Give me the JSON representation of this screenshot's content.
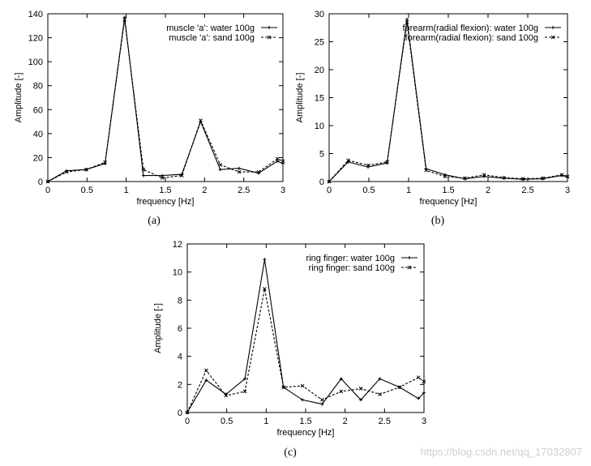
{
  "chart_data": [
    {
      "type": "line",
      "caption": "(a)",
      "xlabel": "frequency [Hz]",
      "ylabel": "Amplitude [-]",
      "xlim": [
        0,
        3
      ],
      "ylim": [
        0,
        140
      ],
      "xticks": [
        0,
        0.5,
        1,
        1.5,
        2,
        2.5,
        3
      ],
      "yticks": [
        0,
        20,
        40,
        60,
        80,
        100,
        120,
        140
      ],
      "legend_position": "top-right",
      "series": [
        {
          "name": "muscle 'a': water 100g",
          "style": "solid",
          "x": [
            0,
            0.24,
            0.49,
            0.73,
            0.98,
            1.22,
            1.46,
            1.71,
            1.95,
            2.2,
            2.44,
            2.69,
            2.93,
            3.0
          ],
          "y": [
            0,
            9,
            10,
            15,
            137,
            5,
            5,
            6,
            50,
            10,
            11,
            7,
            17,
            15
          ]
        },
        {
          "name": "muscle 'a': sand 100g",
          "style": "dashed",
          "x": [
            0,
            0.24,
            0.49,
            0.73,
            0.98,
            1.22,
            1.46,
            1.71,
            1.95,
            2.2,
            2.44,
            2.69,
            2.93,
            3.0
          ],
          "y": [
            0,
            8,
            10,
            16,
            135,
            10,
            3,
            5,
            51,
            14,
            8,
            8,
            19,
            17
          ]
        }
      ]
    },
    {
      "type": "line",
      "caption": "(b)",
      "xlabel": "frequency [Hz]",
      "ylabel": "Amplitude [-]",
      "xlim": [
        0,
        3
      ],
      "ylim": [
        0,
        30
      ],
      "xticks": [
        0,
        0.5,
        1,
        1.5,
        2,
        2.5,
        3
      ],
      "yticks": [
        0,
        5,
        10,
        15,
        20,
        25,
        30
      ],
      "legend_position": "top-right",
      "series": [
        {
          "name": "forearm(radial flexion): water 100g",
          "style": "solid",
          "x": [
            0,
            0.24,
            0.49,
            0.73,
            0.98,
            1.22,
            1.46,
            1.71,
            1.95,
            2.2,
            2.44,
            2.69,
            2.93,
            3.0
          ],
          "y": [
            0,
            3.5,
            2.6,
            3.3,
            29,
            2.3,
            1.2,
            0.5,
            0.9,
            0.6,
            0.4,
            0.5,
            1.1,
            0.8
          ]
        },
        {
          "name": "forearm(radial flexion): sand 100g",
          "style": "dashed",
          "x": [
            0,
            0.24,
            0.49,
            0.73,
            0.98,
            1.22,
            1.46,
            1.71,
            1.95,
            2.2,
            2.44,
            2.69,
            2.93,
            3.0
          ],
          "y": [
            0,
            3.8,
            2.9,
            3.5,
            28.5,
            2.0,
            0.9,
            0.6,
            1.2,
            0.7,
            0.5,
            0.6,
            1.2,
            0.9
          ]
        }
      ]
    },
    {
      "type": "line",
      "caption": "(c)",
      "xlabel": "frequency [Hz]",
      "ylabel": "Amplitude [-]",
      "xlim": [
        0,
        3
      ],
      "ylim": [
        0,
        12
      ],
      "xticks": [
        0,
        0.5,
        1,
        1.5,
        2,
        2.5,
        3
      ],
      "yticks": [
        0,
        2,
        4,
        6,
        8,
        10,
        12
      ],
      "legend_position": "top-right",
      "series": [
        {
          "name": "ring finger: water 100g",
          "style": "solid",
          "x": [
            0,
            0.24,
            0.49,
            0.73,
            0.98,
            1.22,
            1.46,
            1.71,
            1.95,
            2.2,
            2.44,
            2.69,
            2.93,
            3.0
          ],
          "y": [
            0,
            2.3,
            1.3,
            2.4,
            10.9,
            1.8,
            0.9,
            0.6,
            2.4,
            0.9,
            2.4,
            1.8,
            1.0,
            1.4
          ]
        },
        {
          "name": "ring finger: sand 100g",
          "style": "dashed",
          "x": [
            0,
            0.24,
            0.49,
            0.73,
            0.98,
            1.22,
            1.46,
            1.71,
            1.95,
            2.2,
            2.44,
            2.69,
            2.93,
            3.0
          ],
          "y": [
            0,
            3.0,
            1.2,
            1.5,
            8.8,
            1.8,
            1.9,
            0.9,
            1.5,
            1.7,
            1.3,
            1.8,
            2.5,
            2.2
          ]
        }
      ]
    }
  ],
  "watermark": "https://blog.csdn.net/qq_17032807"
}
